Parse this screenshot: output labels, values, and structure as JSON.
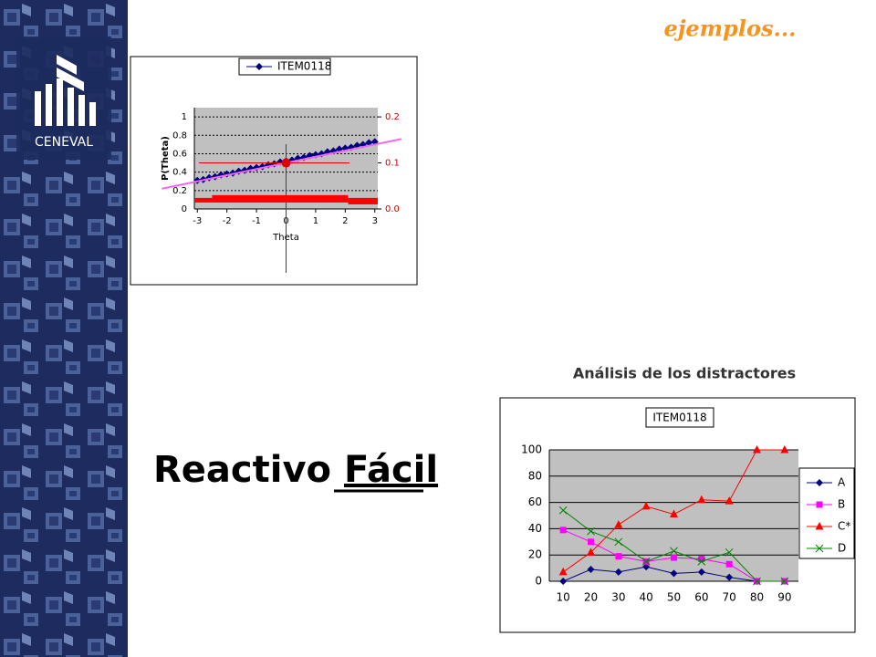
{
  "slide": {
    "header": "ejemplos...",
    "logo": "CENEVAL",
    "title_plain": "Reactivo",
    "title_underlined": "Fácil",
    "caption": "Análisis de los distractores"
  },
  "chart_data": [
    {
      "type": "line",
      "legend": "top",
      "grid": true,
      "ylabel": "P(Theta)",
      "xlabel": "Theta",
      "xlim": [
        -3.1,
        3.1
      ],
      "xticks": [
        -3,
        -2,
        -1,
        0,
        1,
        2,
        3
      ],
      "ylim": [
        0,
        1.1
      ],
      "yticks": [
        0,
        0.2,
        0.4,
        0.6,
        0.8,
        1
      ],
      "y2lim": [
        0,
        0.22
      ],
      "y2ticks": [
        {
          "value": 0,
          "label": "0.0"
        },
        {
          "value": 0.1,
          "label": "0.1"
        },
        {
          "value": 0.2,
          "label": "0.2"
        }
      ],
      "series": [
        {
          "name": "ITEM0118",
          "color": "#000080",
          "marker": "diamond",
          "x": [
            -3,
            -2.8,
            -2.6,
            -2.4,
            -2.2,
            -2,
            -1.8,
            -1.6,
            -1.4,
            -1.2,
            -1,
            -0.8,
            -0.6,
            -0.4,
            -0.2,
            0,
            0.2,
            0.4,
            0.6,
            0.8,
            1,
            1.2,
            1.4,
            1.6,
            1.8,
            2,
            2.2,
            2.4,
            2.6,
            2.8,
            3
          ],
          "values": [
            0.31,
            0.32,
            0.34,
            0.35,
            0.37,
            0.38,
            0.39,
            0.41,
            0.42,
            0.44,
            0.45,
            0.46,
            0.48,
            0.49,
            0.51,
            0.52,
            0.53,
            0.55,
            0.56,
            0.58,
            0.59,
            0.6,
            0.62,
            0.63,
            0.65,
            0.66,
            0.67,
            0.69,
            0.7,
            0.72,
            0.73
          ]
        },
        {
          "color": "#ee66ee",
          "x": [
            -4.2,
            3.9
          ],
          "values": [
            0.22,
            0.76
          ]
        }
      ],
      "band": {
        "axis": "y2",
        "color": "#ff0000",
        "bins": [
          -3.1,
          -2.5,
          2.1,
          3.1
        ],
        "upper": [
          0.024,
          0.03,
          0.024
        ],
        "lower": [
          0.014,
          0.014,
          0.01
        ]
      },
      "point": {
        "x": 0,
        "y": 0.5,
        "color": "#dd0000"
      }
    },
    {
      "type": "line",
      "legend": "right",
      "grid": true,
      "categories": [
        "10",
        "20",
        "30",
        "40",
        "50",
        "60",
        "70",
        "80",
        "90"
      ],
      "ylim": [
        0,
        100
      ],
      "yticks": [
        0,
        20,
        40,
        60,
        80,
        100
      ],
      "box_title": "ITEM0118",
      "series": [
        {
          "name": "A",
          "color": "#000080",
          "marker": "diamond",
          "values": [
            0,
            9,
            7,
            11,
            6,
            7,
            3,
            0,
            null
          ]
        },
        {
          "name": "B",
          "color": "#ff00ff",
          "marker": "square",
          "values": [
            39,
            30,
            19,
            15,
            18,
            17,
            13,
            0,
            0
          ]
        },
        {
          "name": "C*",
          "color": "#ff0000",
          "marker": "triangle",
          "values": [
            7,
            22,
            43,
            57,
            51,
            62,
            61,
            100,
            100
          ]
        },
        {
          "name": "D",
          "color": "#008000",
          "marker": "x",
          "values": [
            54,
            38,
            30,
            15,
            23,
            15,
            22,
            0,
            0
          ]
        }
      ]
    }
  ]
}
